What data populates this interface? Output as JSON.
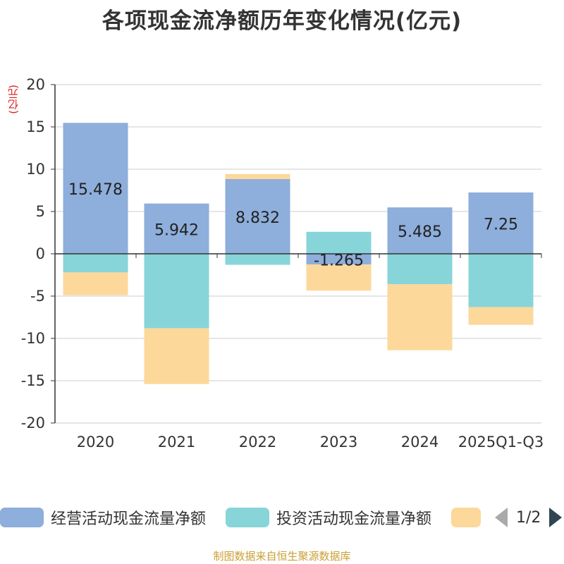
{
  "title": "各项现金流净额历年变化情况(亿元)",
  "source": "制图数据来自恒生聚源数据库",
  "pager": {
    "text": "1/2"
  },
  "chart_data": {
    "type": "bar",
    "stacked": true,
    "unit_label": "(亿元)",
    "categories": [
      "2020",
      "2021",
      "2022",
      "2023",
      "2024",
      "2025Q1-Q3"
    ],
    "ylim": [
      -20,
      20
    ],
    "yticks": [
      20,
      15,
      10,
      5,
      0,
      -5,
      -10,
      -15,
      -20
    ],
    "ytick_labels": [
      "20",
      "15",
      "10",
      "5",
      "0",
      "-5",
      "-10",
      "-15",
      "-20"
    ],
    "series": [
      {
        "name": "经营活动现金流量净额",
        "color": "#8eaedb",
        "values": [
          15.478,
          5.942,
          8.832,
          -1.265,
          5.485,
          7.25
        ],
        "labels": [
          "15.478",
          "5.942",
          "8.832",
          "-1.265",
          "5.485",
          "7.25"
        ]
      },
      {
        "name": "投资活动现金流量净额",
        "color": "#87d5d8",
        "values": [
          -2.2,
          -8.8,
          -1.3,
          2.6,
          -3.6,
          -6.3
        ]
      },
      {
        "name": "",
        "color": "#fdd89b",
        "values": [
          -2.7,
          -6.6,
          0.6,
          -3.1,
          -7.8,
          -2.1
        ]
      }
    ]
  }
}
